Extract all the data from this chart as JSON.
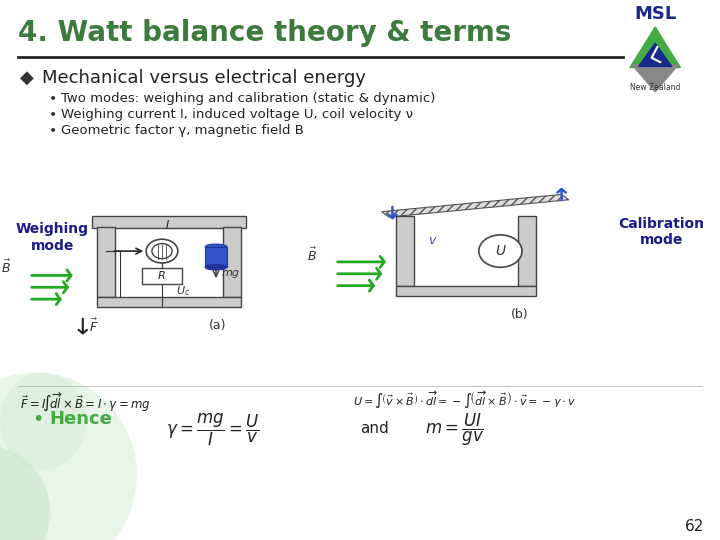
{
  "title": "4. Watt balance theory & terms",
  "title_color": "#3d7a3d",
  "bg_color": "#ffffff",
  "bullet_diamond": "◆",
  "bullet_main": "Mechanical versus electrical energy",
  "bullet_main_color": "#222222",
  "sub_bullets": [
    "Two modes: weighing and calibration (static & dynamic)",
    "Weighing current I, induced voltage U, coil velocity ν",
    "Geometric factor γ, magnetic field B"
  ],
  "label_left": "Weighing\nmode",
  "label_right": "Calibration\nmode",
  "label_color": "#1a1a8c",
  "hence_text": "Hence",
  "hence_color": "#44aa44",
  "page_num": "62",
  "line_color": "#222222",
  "gray_color": "#aaaaaa",
  "dark_gray": "#555555",
  "arrow_blue": "#3355cc",
  "green_arrow": "#22aa22",
  "text_color": "#222222"
}
